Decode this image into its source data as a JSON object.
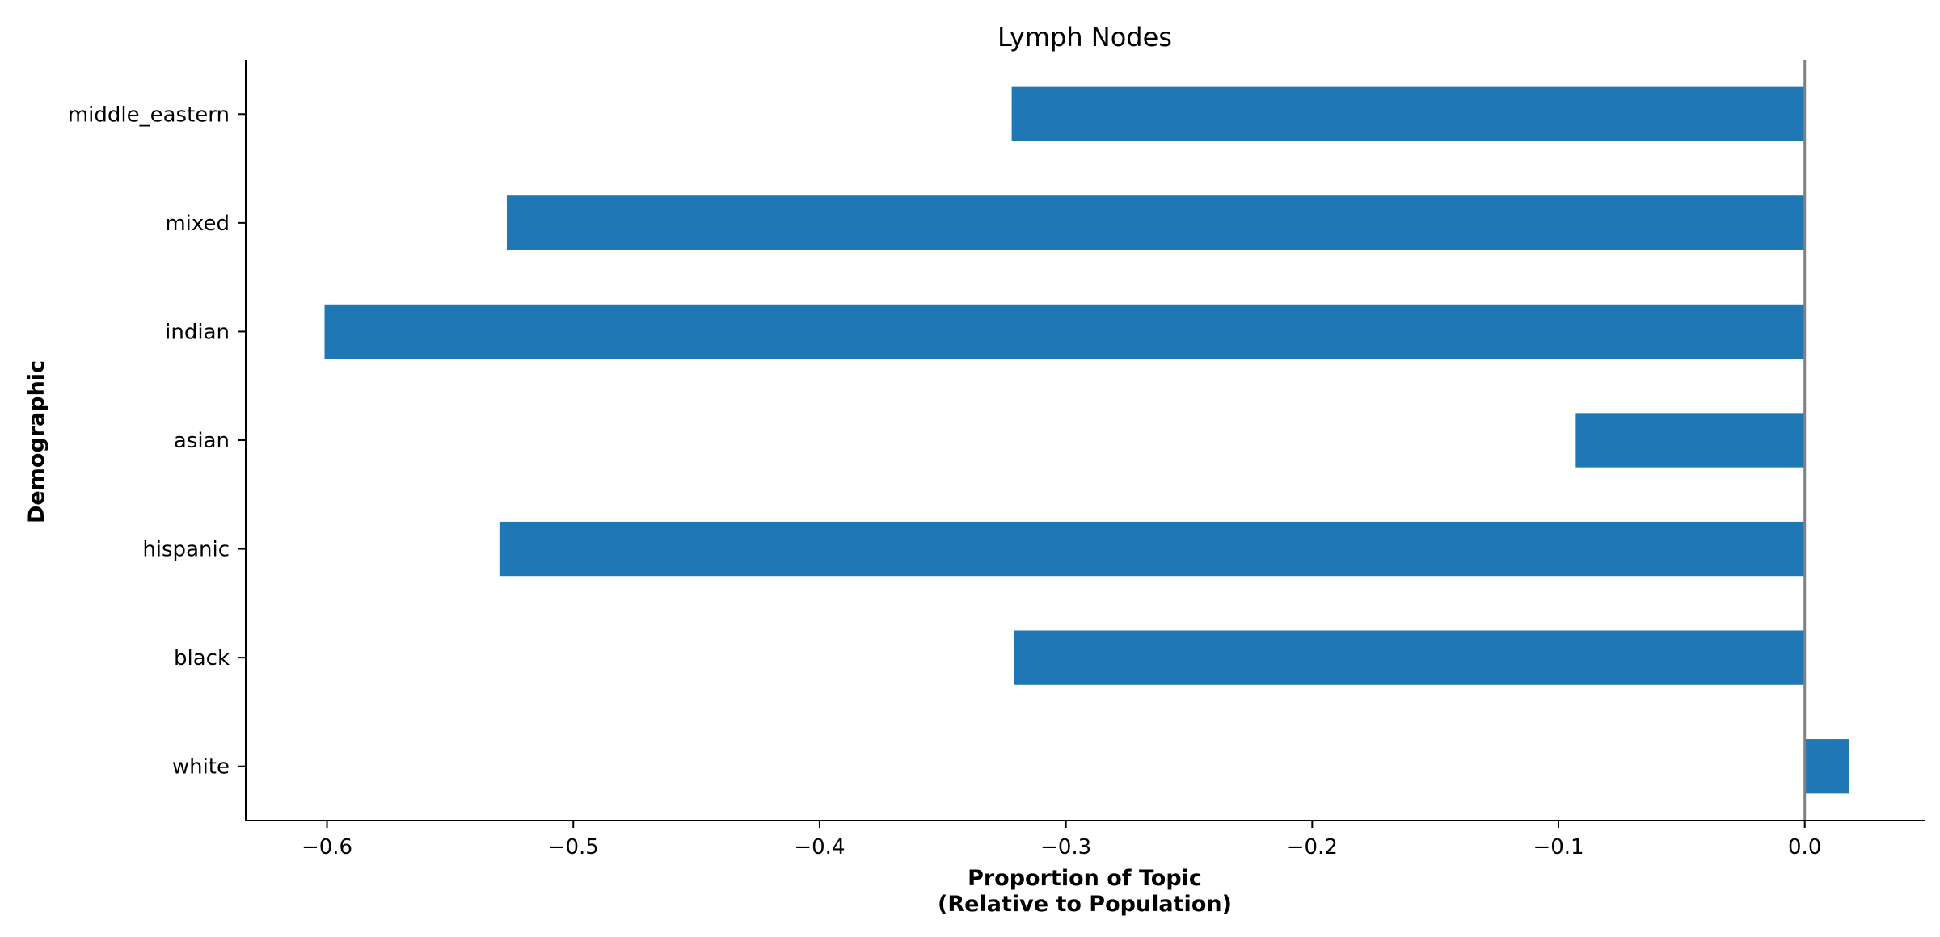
{
  "chart_data": {
    "type": "bar",
    "orientation": "horizontal",
    "title": "Lymph Nodes",
    "xlabel_line1": "Proportion of Topic",
    "xlabel_line2": "(Relative to Population)",
    "ylabel": "Demographic",
    "categories": [
      "middle_eastern",
      "mixed",
      "indian",
      "asian",
      "hispanic",
      "black",
      "white"
    ],
    "values": [
      -0.322,
      -0.527,
      -0.601,
      -0.093,
      -0.53,
      -0.321,
      0.018
    ],
    "xlim": [
      -0.633,
      0.049
    ],
    "xticks": [
      -0.6,
      -0.5,
      -0.4,
      -0.3,
      -0.2,
      -0.1,
      0.0
    ],
    "xtick_labels": [
      "−0.6",
      "−0.5",
      "−0.4",
      "−0.3",
      "−0.2",
      "−0.1",
      "0.0"
    ],
    "bar_color": "#1f77b4",
    "zero_line_color": "#808080",
    "grid": false,
    "legend": "none"
  }
}
